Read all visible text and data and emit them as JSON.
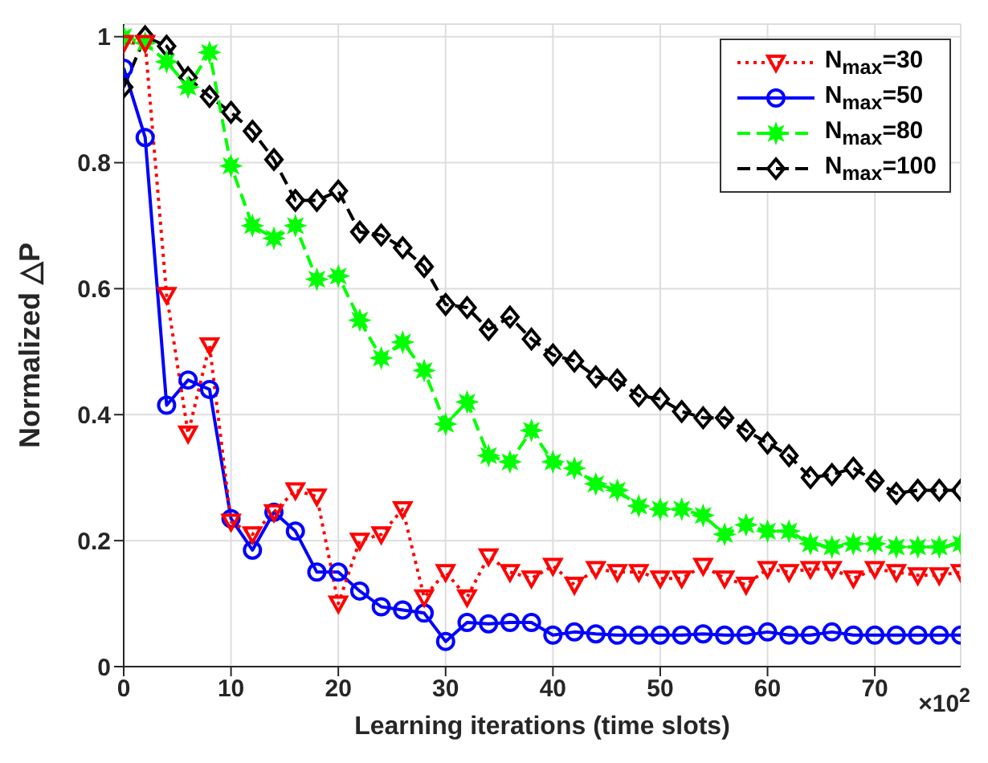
{
  "chart_data": {
    "type": "line",
    "xlabel": "Learning iterations (time slots)",
    "ylabel": "Normalized  △P",
    "x": [
      0,
      2,
      4,
      6,
      8,
      10,
      12,
      14,
      16,
      18,
      20,
      22,
      24,
      26,
      28,
      30,
      32,
      34,
      36,
      38,
      40,
      42,
      44,
      46,
      48,
      50,
      52,
      54,
      56,
      58,
      60,
      62,
      64,
      66,
      68,
      70,
      72,
      74,
      76,
      78
    ],
    "series": [
      {
        "name": "N$_{max}$=30",
        "color": "#ff0000",
        "marker": "triangle",
        "line_style": "dotted",
        "values": [
          0.99,
          0.99,
          0.59,
          0.37,
          0.51,
          0.23,
          0.21,
          0.245,
          0.28,
          0.27,
          0.1,
          0.2,
          0.21,
          0.25,
          0.11,
          0.15,
          0.11,
          0.175,
          0.15,
          0.14,
          0.16,
          0.13,
          0.155,
          0.15,
          0.15,
          0.14,
          0.14,
          0.16,
          0.14,
          0.13,
          0.155,
          0.15,
          0.155,
          0.155,
          0.14,
          0.155,
          0.15,
          0.145,
          0.145,
          0.15
        ]
      },
      {
        "name": "N$_{max}$=50",
        "color": "#0000ff",
        "marker": "circle",
        "line_style": "solid",
        "values": [
          0.95,
          0.84,
          0.415,
          0.455,
          0.44,
          0.235,
          0.185,
          0.245,
          0.215,
          0.15,
          0.15,
          0.12,
          0.095,
          0.09,
          0.085,
          0.04,
          0.07,
          0.068,
          0.07,
          0.07,
          0.05,
          0.055,
          0.052,
          0.05,
          0.05,
          0.05,
          0.05,
          0.052,
          0.05,
          0.05,
          0.055,
          0.05,
          0.05,
          0.055,
          0.05,
          0.05,
          0.05,
          0.05,
          0.05,
          0.05
        ]
      },
      {
        "name": "N$_{max}$=80",
        "color": "#00ff00",
        "marker": "star",
        "line_style": "dashed",
        "values": [
          1.0,
          0.99,
          0.96,
          0.92,
          0.975,
          0.795,
          0.7,
          0.68,
          0.7,
          0.615,
          0.62,
          0.55,
          0.49,
          0.515,
          0.47,
          0.385,
          0.42,
          0.335,
          0.325,
          0.375,
          0.325,
          0.315,
          0.29,
          0.28,
          0.255,
          0.25,
          0.25,
          0.24,
          0.21,
          0.225,
          0.215,
          0.215,
          0.195,
          0.19,
          0.195,
          0.195,
          0.19,
          0.19,
          0.19,
          0.195
        ]
      },
      {
        "name": "N$_{max}$=100",
        "color": "#000000",
        "marker": "diamond",
        "line_style": "dashed",
        "values": [
          0.92,
          1.0,
          0.985,
          0.935,
          0.905,
          0.88,
          0.85,
          0.805,
          0.74,
          0.74,
          0.755,
          0.69,
          0.685,
          0.665,
          0.635,
          0.575,
          0.57,
          0.535,
          0.555,
          0.52,
          0.495,
          0.485,
          0.46,
          0.455,
          0.43,
          0.425,
          0.405,
          0.395,
          0.395,
          0.375,
          0.355,
          0.335,
          0.3,
          0.305,
          0.315,
          0.295,
          0.275,
          0.28,
          0.28,
          0.28
        ]
      }
    ],
    "xlim": [
      0,
      78
    ],
    "xticks": [
      0,
      10,
      20,
      30,
      40,
      50,
      60,
      70
    ],
    "ylim": [
      0,
      1.02
    ],
    "yticks": [
      0,
      0.2,
      0.4,
      0.6,
      0.8,
      1
    ],
    "annotations": [
      "×10$^{2}$"
    ],
    "grid": true,
    "legend": "top right"
  }
}
